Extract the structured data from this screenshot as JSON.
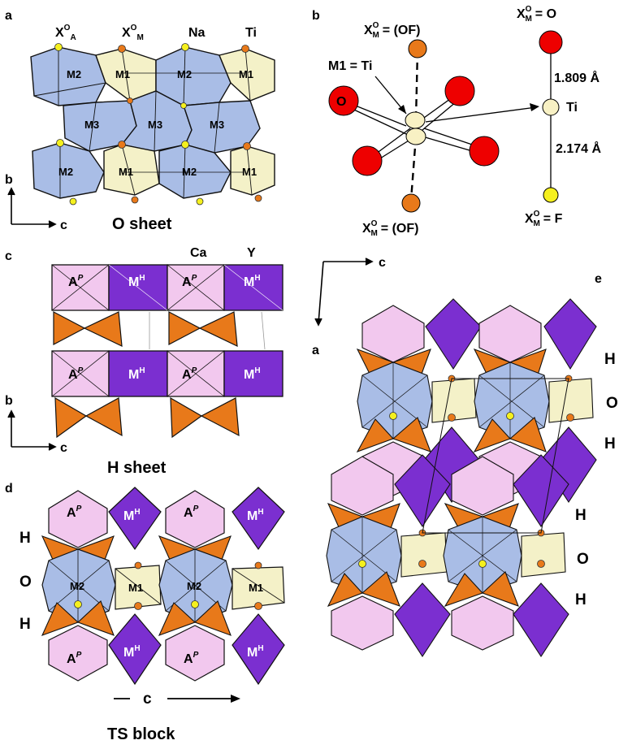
{
  "panels": {
    "a": {
      "letter": "a",
      "site_labels": [
        "X",
        "X",
        "Na",
        "Ti"
      ],
      "site_sup": [
        "O",
        "O"
      ],
      "site_sub": [
        "A",
        "M"
      ],
      "poly_labels": [
        "M2",
        "M1",
        "M2",
        "M1",
        "M3",
        "M3",
        "M3",
        "M2",
        "M1",
        "M2",
        "M1"
      ],
      "axis_vertical": "b",
      "axis_horizontal": "c",
      "caption": "O sheet"
    },
    "b": {
      "letter": "b",
      "top_label": "X",
      "top_label_tail": "= (OF)",
      "bottom_label": "X",
      "bottom_label_tail": "= (OF)",
      "m1_label": "M1 = Ti",
      "o_label": "O",
      "right_top_label": "X",
      "right_top_tail": "= O",
      "right_bottom_label": "X",
      "right_bottom_tail": "= F",
      "sup": "O",
      "sub": "M",
      "ti_label": "Ti",
      "dist_top": "1.809 Å",
      "dist_bottom": "2.174 Å"
    },
    "c": {
      "letter": "c",
      "site_labels": [
        "Ca",
        "Y"
      ],
      "poly_labels": [
        "A",
        "M",
        "A",
        "M",
        "A",
        "M",
        "A",
        "M"
      ],
      "a_sup": "P",
      "m_sup": "H",
      "axis_vertical": "b",
      "axis_horizontal": "c",
      "caption": "H sheet"
    },
    "d": {
      "letter": "d",
      "layer_labels": [
        "H",
        "O",
        "H"
      ],
      "poly_labels": [
        "A",
        "M",
        "A",
        "M",
        "M2",
        "M1",
        "M2",
        "M1",
        "A",
        "M",
        "A",
        "M"
      ],
      "a_sup": "P",
      "m_sup": "H",
      "axis_label": "c",
      "caption": "TS block"
    },
    "e": {
      "letter": "e",
      "axis_horizontal": "c",
      "axis_vertical": "a",
      "layer_labels": [
        "H",
        "O",
        "H",
        "H",
        "O",
        "H"
      ]
    }
  },
  "colors": {
    "m2_blue": "#a9bde6",
    "m1_cream": "#f4f1c8",
    "a_pink": "#f2c8ee",
    "m_purple": "#7b2fd0",
    "orange_site": "#e8791a",
    "yellow_site": "#f5f01e",
    "oxygen_red": "#ee0000",
    "ti_cream": "#f8f1c4"
  }
}
